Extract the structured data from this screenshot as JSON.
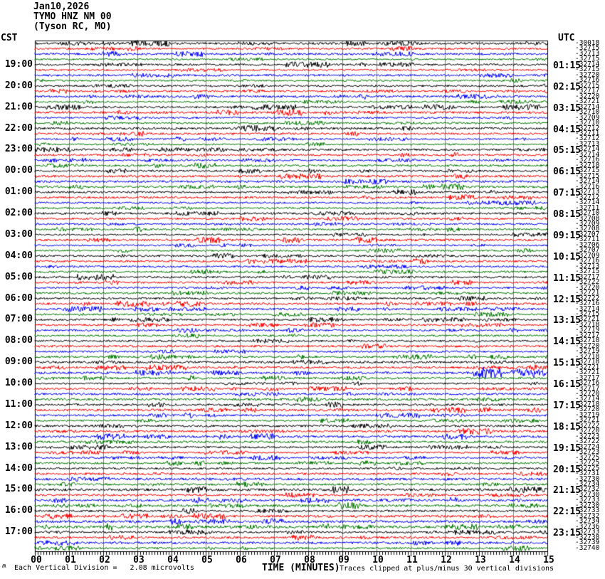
{
  "header": {
    "date": "Jan10,2026",
    "station": "TYMO HNZ NM 00",
    "location": "(Tyson RC, MO)"
  },
  "chart_data": {
    "type": "line",
    "variant": "helicorder-seismogram",
    "x_axis_label": "TIME (MINUTES)",
    "x_range": [
      0,
      15
    ],
    "minutes_per_line": 15,
    "lines_per_hour": 4,
    "num_lines": 96,
    "x_tick_labels": [
      "00",
      "01",
      "02",
      "03",
      "04",
      "05",
      "06",
      "07",
      "08",
      "09",
      "10",
      "11",
      "12",
      "13",
      "14",
      "15"
    ],
    "left_axis_timezone": "CST",
    "right_axis_timezone": "UTC",
    "left_hour_labels": [
      "19:00",
      "20:00",
      "21:00",
      "22:00",
      "23:00",
      "00:00",
      "01:00",
      "02:00",
      "03:00",
      "04:00",
      "05:00",
      "06:00",
      "07:00",
      "08:00",
      "09:00",
      "10:00",
      "11:00",
      "12:00",
      "13:00",
      "14:00",
      "15:00",
      "16:00",
      "17:00"
    ],
    "right_hour_labels": [
      "01:15",
      "02:15",
      "03:15",
      "04:15",
      "05:15",
      "06:15",
      "07:15",
      "08:15",
      "09:15",
      "10:15",
      "11:15",
      "12:15",
      "13:15",
      "14:15",
      "15:15",
      "16:15",
      "17:15",
      "18:15",
      "19:15",
      "20:15",
      "21:15",
      "22:15",
      "23:15"
    ],
    "line_color_cycle": [
      "#000000",
      "#ff0000",
      "#0000ff",
      "#007700"
    ],
    "grid_color": "#808080",
    "background_color": "#ffffff",
    "line_mean_counts": [
      -30018,
      -32715,
      -32713,
      -32715,
      -32714,
      -32715,
      -32720,
      -32716,
      -32715,
      -32717,
      -32720,
      -32721,
      -32714,
      -32710,
      -32709,
      -32710,
      -32712,
      -32711,
      -32712,
      -32713,
      -32714,
      -32714,
      -32716,
      -32718,
      -32715,
      -32715,
      -32714,
      -32716,
      -32713,
      -32712,
      -32714,
      -32711,
      -32710,
      -32708,
      -32709,
      -32708,
      -32707,
      -32711,
      -32706,
      -32707,
      -32709,
      -32716,
      -32713,
      -32715,
      -32717,
      -32722,
      -32720,
      -32721,
      -32722,
      -32716,
      -32714,
      -32715,
      -32721,
      -32718,
      -32719,
      -32717,
      -32718,
      -32720,
      -32719,
      -32718,
      -32718,
      -32721,
      -32721,
      -32717,
      -32716,
      -32717,
      -32720,
      -32714,
      -32718,
      -32720,
      -32719,
      -32721,
      -32722,
      -32720,
      -32723,
      -32722,
      -32724,
      -32723,
      -32725,
      -32725,
      -32725,
      -32731,
      -32730,
      -32734,
      -32732,
      -32730,
      -32733,
      -32730,
      -32733,
      -32732,
      -32734,
      -32736,
      -32733,
      -32738,
      -32739,
      -32740
    ],
    "scale_note": "Each Vertical Division =   2.08 microvolts",
    "clip_note": "Traces clipped at plus/minus 30 vertical divisions",
    "watermark": "ʍ",
    "events": [
      {
        "line_index": 62,
        "minute_start": 7.55,
        "minute_end": 8.05,
        "relative_amplitude": 3.2
      },
      {
        "line_index": 62,
        "minute_start": 12.85,
        "minute_end": 13.65,
        "relative_amplitude": 7.5
      },
      {
        "line_index": 62,
        "minute_start": 13.95,
        "minute_end": 14.95,
        "relative_amplitude": 6.5
      },
      {
        "line_index": 61,
        "minute_start": 12.9,
        "minute_end": 14.9,
        "relative_amplitude": 2.2
      }
    ]
  }
}
